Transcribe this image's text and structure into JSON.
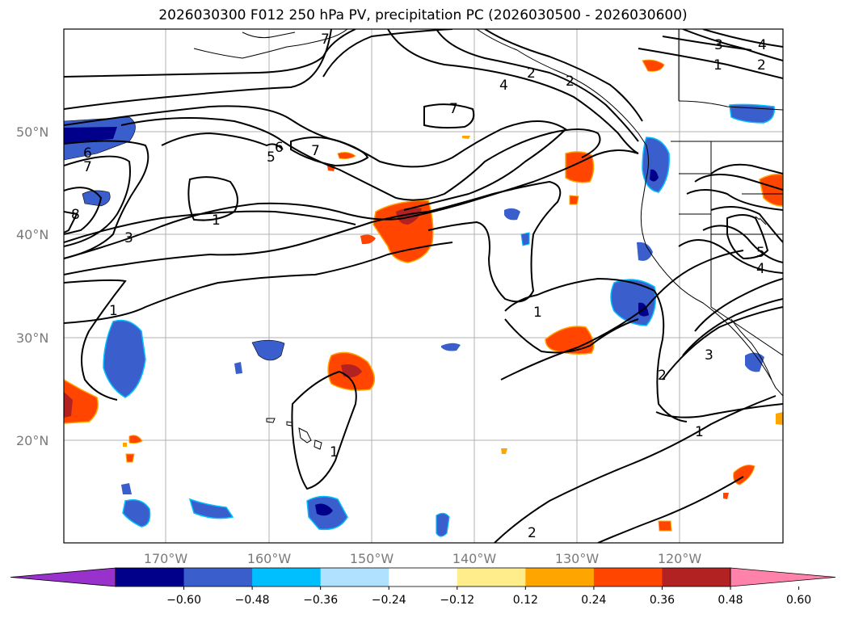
{
  "title": "2026030300 F012 250 hPa PV, precipitation PC (2026030500 - 2026030600)",
  "lat_labels": [
    "50°N",
    "40°N",
    "30°N",
    "20°N"
  ],
  "lon_labels": [
    "170°W",
    "160°W",
    "150°W",
    "140°W",
    "130°W",
    "120°W"
  ],
  "contour_labels": [
    "7",
    "2",
    "3",
    "4",
    "2",
    "1",
    "4",
    "2",
    "7",
    "6",
    "5",
    "7",
    "6",
    "7",
    "8",
    "3",
    "1",
    "1",
    "5",
    "4",
    "1",
    "3",
    "2",
    "1",
    "1",
    "2"
  ],
  "colorbar": {
    "colors": [
      "#9932cc",
      "#00008b",
      "#3a5fcd",
      "#00bfff",
      "#b0e2ff",
      "#ffffff",
      "#ffec8b",
      "#ffa500",
      "#ff4500",
      "#b22222",
      "#ff82ab"
    ],
    "tick_labels": [
      "−0.60",
      "−0.48",
      "−0.36",
      "−0.24",
      "−0.12",
      "0.12",
      "0.24",
      "0.36",
      "0.48",
      "0.60"
    ]
  }
}
